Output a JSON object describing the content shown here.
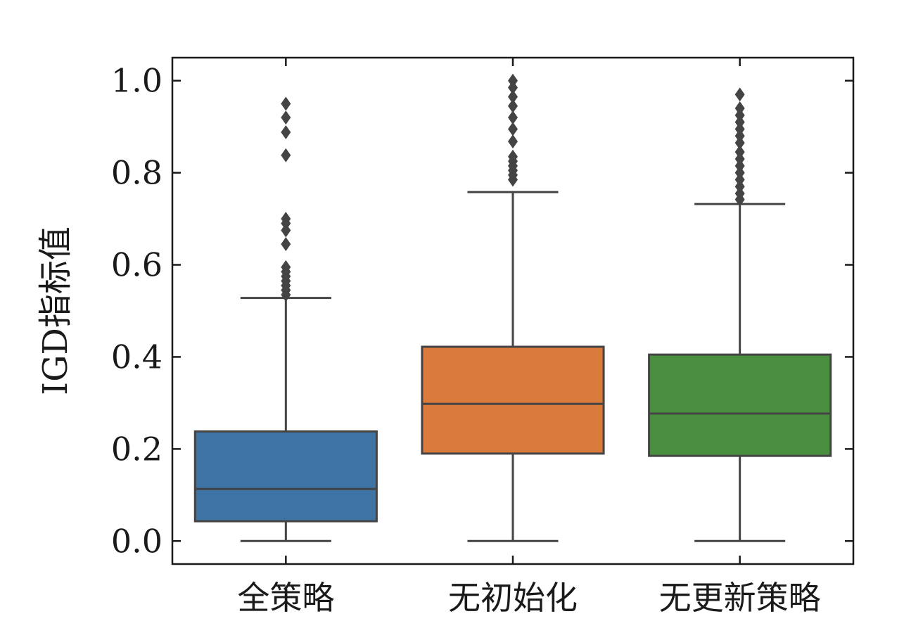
{
  "chart_data": {
    "type": "box",
    "title": "",
    "xlabel": "",
    "ylabel": "IGD指标值",
    "ylim": [
      -0.05,
      1.05
    ],
    "yticks": [
      "0.0",
      "0.2",
      "0.4",
      "0.6",
      "0.8",
      "1.0"
    ],
    "ytick_values": [
      0.0,
      0.2,
      0.4,
      0.6,
      0.8,
      1.0
    ],
    "grid": false,
    "legend": "none",
    "categories": [
      "全策略",
      "无初始化",
      "无更新策略"
    ],
    "colors": [
      "#3e73a5",
      "#db7b3b",
      "#4a8e3f"
    ],
    "edge_color": "#444444",
    "boxes": [
      {
        "whisker_low": 0.0,
        "q1": 0.043,
        "median": 0.113,
        "q3": 0.238,
        "whisker_high": 0.528,
        "outliers": [
          0.535,
          0.545,
          0.555,
          0.565,
          0.575,
          0.585,
          0.595,
          0.645,
          0.675,
          0.69,
          0.7,
          0.838,
          0.888,
          0.92,
          0.95
        ]
      },
      {
        "whisker_low": 0.0,
        "q1": 0.19,
        "median": 0.298,
        "q3": 0.422,
        "whisker_high": 0.758,
        "outliers": [
          0.785,
          0.795,
          0.805,
          0.815,
          0.825,
          0.835,
          0.868,
          0.895,
          0.92,
          0.945,
          0.965,
          0.985,
          1.0
        ]
      },
      {
        "whisker_low": 0.0,
        "q1": 0.185,
        "median": 0.277,
        "q3": 0.405,
        "whisker_high": 0.732,
        "outliers": [
          0.742,
          0.755,
          0.77,
          0.785,
          0.8,
          0.815,
          0.83,
          0.845,
          0.865,
          0.88,
          0.895,
          0.91,
          0.925,
          0.94,
          0.97
        ]
      }
    ]
  }
}
